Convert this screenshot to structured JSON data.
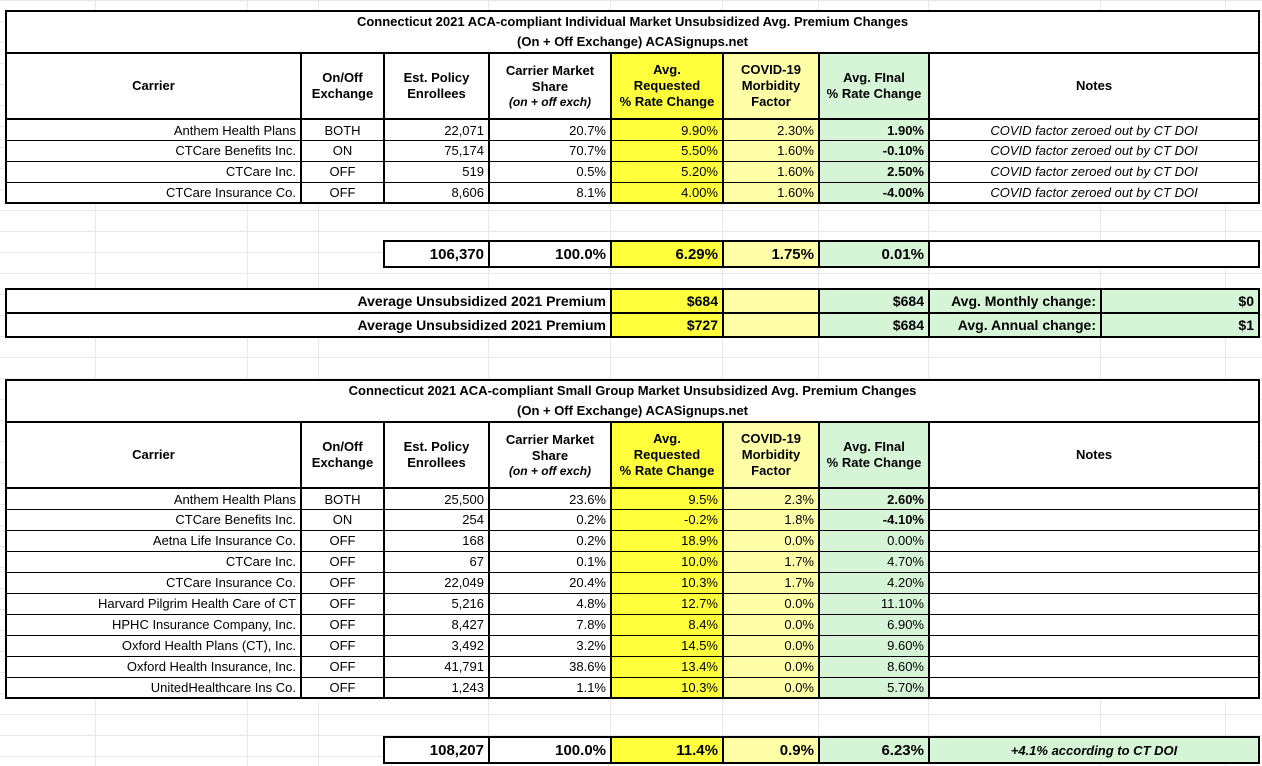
{
  "colors": {
    "yellow": "#FFFF3C",
    "pale_yellow": "#FFFFA8",
    "green": "#D5F5D6",
    "border": "#000000",
    "gridline": "#E8E8E8"
  },
  "headers": {
    "carrier": "Carrier",
    "exchange": "On/Off\nExchange",
    "enrollees": "Est. Policy\nEnrollees",
    "share": "Carrier Market\nShare",
    "share_sub": "(on + off exch)",
    "requested": "Avg.\nRequested\n% Rate Change",
    "covid": "COVID-19\nMorbidity\nFactor",
    "final": "Avg. FInal\n% Rate Change",
    "notes": "Notes"
  },
  "table1": {
    "title_line1": "Connecticut 2021 ACA-compliant Individual Market Unsubsidized Avg. Premium Changes",
    "title_line2": "(On + Off Exchange) ACASignups.net",
    "rows": [
      {
        "carrier": "Anthem Health Plans",
        "exchange": "BOTH",
        "enrollees": "22,071",
        "share": "20.7%",
        "requested": "9.90%",
        "covid": "2.30%",
        "final": "1.90%",
        "final_bold": true,
        "note": "COVID factor zeroed out by CT DOI"
      },
      {
        "carrier": "CTCare Benefits Inc.",
        "exchange": "ON",
        "enrollees": "75,174",
        "share": "70.7%",
        "requested": "5.50%",
        "covid": "1.60%",
        "final": "-0.10%",
        "final_bold": true,
        "note": "COVID factor zeroed out by CT DOI"
      },
      {
        "carrier": "CTCare Inc.",
        "exchange": "OFF",
        "enrollees": "519",
        "share": "0.5%",
        "requested": "5.20%",
        "covid": "1.60%",
        "final": "2.50%",
        "final_bold": true,
        "note": "COVID factor zeroed out by CT DOI"
      },
      {
        "carrier": "CTCare Insurance Co.",
        "exchange": "OFF",
        "enrollees": "8,606",
        "share": "8.1%",
        "requested": "4.00%",
        "covid": "1.60%",
        "final": "-4.00%",
        "final_bold": true,
        "note": "COVID factor zeroed out by CT DOI"
      }
    ],
    "totals": {
      "enrollees": "106,370",
      "share": "100.0%",
      "requested": "6.29%",
      "covid": "1.75%",
      "final": "0.01%",
      "note": ""
    }
  },
  "premium": {
    "rows": [
      {
        "label": "Average Unsubsidized 2021 Premium",
        "requested": "$684",
        "covid": "",
        "final": "$684",
        "change_label": "Avg. Monthly change:",
        "change_value": "$0"
      },
      {
        "label": "Average Unsubsidized 2021 Premium",
        "requested": "$727",
        "covid": "",
        "final": "$684",
        "change_label": "Avg. Annual change:",
        "change_value": "$1"
      }
    ]
  },
  "table2": {
    "title_line1": "Connecticut 2021 ACA-compliant Small Group Market Unsubsidized Avg. Premium Changes",
    "title_line2": "(On + Off Exchange) ACASignups.net",
    "rows": [
      {
        "carrier": "Anthem Health Plans",
        "exchange": "BOTH",
        "enrollees": "25,500",
        "share": "23.6%",
        "requested": "9.5%",
        "covid": "2.3%",
        "final": "2.60%",
        "final_bold": true,
        "note": ""
      },
      {
        "carrier": "CTCare Benefits Inc.",
        "exchange": "ON",
        "enrollees": "254",
        "share": "0.2%",
        "requested": "-0.2%",
        "covid": "1.8%",
        "final": "-4.10%",
        "final_bold": true,
        "note": ""
      },
      {
        "carrier": "Aetna Life Insurance Co.",
        "exchange": "OFF",
        "enrollees": "168",
        "share": "0.2%",
        "requested": "18.9%",
        "covid": "0.0%",
        "final": "0.00%",
        "final_bold": false,
        "note": ""
      },
      {
        "carrier": "CTCare Inc.",
        "exchange": "OFF",
        "enrollees": "67",
        "share": "0.1%",
        "requested": "10.0%",
        "covid": "1.7%",
        "final": "4.70%",
        "final_bold": false,
        "note": ""
      },
      {
        "carrier": "CTCare Insurance Co.",
        "exchange": "OFF",
        "enrollees": "22,049",
        "share": "20.4%",
        "requested": "10.3%",
        "covid": "1.7%",
        "final": "4.20%",
        "final_bold": false,
        "note": ""
      },
      {
        "carrier": "Harvard Pilgrim Health Care of CT",
        "exchange": "OFF",
        "enrollees": "5,216",
        "share": "4.8%",
        "requested": "12.7%",
        "covid": "0.0%",
        "final": "11.10%",
        "final_bold": false,
        "note": ""
      },
      {
        "carrier": "HPHC Insurance Company, Inc.",
        "exchange": "OFF",
        "enrollees": "8,427",
        "share": "7.8%",
        "requested": "8.4%",
        "covid": "0.0%",
        "final": "6.90%",
        "final_bold": false,
        "note": ""
      },
      {
        "carrier": "Oxford Health Plans (CT), Inc.",
        "exchange": "OFF",
        "enrollees": "3,492",
        "share": "3.2%",
        "requested": "14.5%",
        "covid": "0.0%",
        "final": "9.60%",
        "final_bold": false,
        "note": ""
      },
      {
        "carrier": "Oxford Health Insurance, Inc.",
        "exchange": "OFF",
        "enrollees": "41,791",
        "share": "38.6%",
        "requested": "13.4%",
        "covid": "0.0%",
        "final": "8.60%",
        "final_bold": false,
        "note": ""
      },
      {
        "carrier": "UnitedHealthcare Ins Co.",
        "exchange": "OFF",
        "enrollees": "1,243",
        "share": "1.1%",
        "requested": "10.3%",
        "covid": "0.0%",
        "final": "5.70%",
        "final_bold": false,
        "note": ""
      }
    ],
    "totals": {
      "enrollees": "108,207",
      "share": "100.0%",
      "requested": "11.4%",
      "covid": "0.9%",
      "final": "6.23%",
      "note": "+4.1% according to CT DOI"
    }
  }
}
